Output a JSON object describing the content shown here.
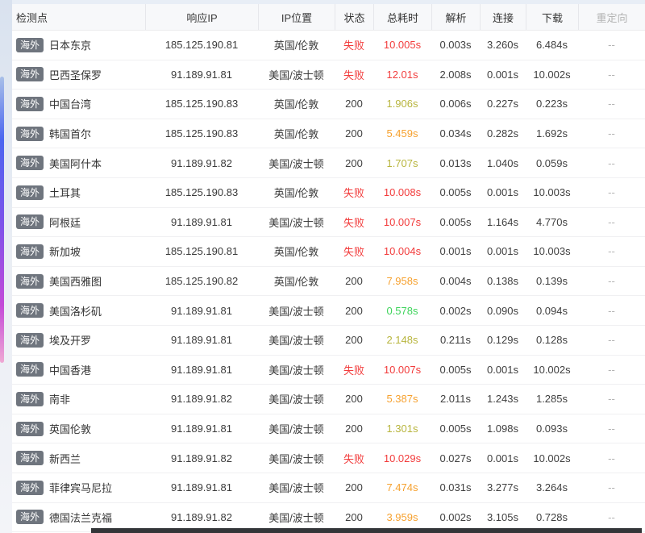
{
  "table": {
    "columns": [
      {
        "key": "node",
        "label": "检测点"
      },
      {
        "key": "ip",
        "label": "响应IP"
      },
      {
        "key": "location",
        "label": "IP位置"
      },
      {
        "key": "status",
        "label": "状态"
      },
      {
        "key": "total",
        "label": "总耗时"
      },
      {
        "key": "dns",
        "label": "解析"
      },
      {
        "key": "connect",
        "label": "连接"
      },
      {
        "key": "download",
        "label": "下载"
      },
      {
        "key": "redirect",
        "label": "重定向"
      }
    ],
    "rows": [
      {
        "tag": "海外",
        "node": "日本东京",
        "ip": "185.125.190.81",
        "location": "英国/伦敦",
        "status": "失败",
        "status_type": "fail",
        "total": "10.005s",
        "total_color": "red",
        "dns": "0.003s",
        "connect": "3.260s",
        "download": "6.484s",
        "redirect": "--"
      },
      {
        "tag": "海外",
        "node": "巴西圣保罗",
        "ip": "91.189.91.81",
        "location": "美国/波士顿",
        "status": "失败",
        "status_type": "fail",
        "total": "12.01s",
        "total_color": "red",
        "dns": "2.008s",
        "connect": "0.001s",
        "download": "10.002s",
        "redirect": "--"
      },
      {
        "tag": "海外",
        "node": "中国台湾",
        "ip": "185.125.190.83",
        "location": "英国/伦敦",
        "status": "200",
        "status_type": "ok",
        "total": "1.906s",
        "total_color": "olive",
        "dns": "0.006s",
        "connect": "0.227s",
        "download": "0.223s",
        "redirect": "--"
      },
      {
        "tag": "海外",
        "node": "韩国首尔",
        "ip": "185.125.190.83",
        "location": "英国/伦敦",
        "status": "200",
        "status_type": "ok",
        "total": "5.459s",
        "total_color": "orange",
        "dns": "0.034s",
        "connect": "0.282s",
        "download": "1.692s",
        "redirect": "--"
      },
      {
        "tag": "海外",
        "node": "美国阿什本",
        "ip": "91.189.91.82",
        "location": "美国/波士顿",
        "status": "200",
        "status_type": "ok",
        "total": "1.707s",
        "total_color": "olive",
        "dns": "0.013s",
        "connect": "1.040s",
        "download": "0.059s",
        "redirect": "--"
      },
      {
        "tag": "海外",
        "node": "土耳其",
        "ip": "185.125.190.83",
        "location": "英国/伦敦",
        "status": "失败",
        "status_type": "fail",
        "total": "10.008s",
        "total_color": "red",
        "dns": "0.005s",
        "connect": "0.001s",
        "download": "10.003s",
        "redirect": "--"
      },
      {
        "tag": "海外",
        "node": "阿根廷",
        "ip": "91.189.91.81",
        "location": "美国/波士顿",
        "status": "失败",
        "status_type": "fail",
        "total": "10.007s",
        "total_color": "red",
        "dns": "0.005s",
        "connect": "1.164s",
        "download": "4.770s",
        "redirect": "--"
      },
      {
        "tag": "海外",
        "node": "新加坡",
        "ip": "185.125.190.81",
        "location": "英国/伦敦",
        "status": "失败",
        "status_type": "fail",
        "total": "10.004s",
        "total_color": "red",
        "dns": "0.001s",
        "connect": "0.001s",
        "download": "10.003s",
        "redirect": "--"
      },
      {
        "tag": "海外",
        "node": "美国西雅图",
        "ip": "185.125.190.82",
        "location": "英国/伦敦",
        "status": "200",
        "status_type": "ok",
        "total": "7.958s",
        "total_color": "orange",
        "dns": "0.004s",
        "connect": "0.138s",
        "download": "0.139s",
        "redirect": "--"
      },
      {
        "tag": "海外",
        "node": "美国洛杉矶",
        "ip": "91.189.91.81",
        "location": "美国/波士顿",
        "status": "200",
        "status_type": "ok",
        "total": "0.578s",
        "total_color": "green",
        "dns": "0.002s",
        "connect": "0.090s",
        "download": "0.094s",
        "redirect": "--"
      },
      {
        "tag": "海外",
        "node": "埃及开罗",
        "ip": "91.189.91.81",
        "location": "美国/波士顿",
        "status": "200",
        "status_type": "ok",
        "total": "2.148s",
        "total_color": "olive",
        "dns": "0.211s",
        "connect": "0.129s",
        "download": "0.128s",
        "redirect": "--"
      },
      {
        "tag": "海外",
        "node": "中国香港",
        "ip": "91.189.91.81",
        "location": "美国/波士顿",
        "status": "失败",
        "status_type": "fail",
        "total": "10.007s",
        "total_color": "red",
        "dns": "0.005s",
        "connect": "0.001s",
        "download": "10.002s",
        "redirect": "--"
      },
      {
        "tag": "海外",
        "node": "南非",
        "ip": "91.189.91.82",
        "location": "美国/波士顿",
        "status": "200",
        "status_type": "ok",
        "total": "5.387s",
        "total_color": "orange",
        "dns": "2.011s",
        "connect": "1.243s",
        "download": "1.285s",
        "redirect": "--"
      },
      {
        "tag": "海外",
        "node": "英国伦敦",
        "ip": "91.189.91.81",
        "location": "美国/波士顿",
        "status": "200",
        "status_type": "ok",
        "total": "1.301s",
        "total_color": "olive",
        "dns": "0.005s",
        "connect": "1.098s",
        "download": "0.093s",
        "redirect": "--"
      },
      {
        "tag": "海外",
        "node": "新西兰",
        "ip": "91.189.91.82",
        "location": "美国/波士顿",
        "status": "失败",
        "status_type": "fail",
        "total": "10.029s",
        "total_color": "red",
        "dns": "0.027s",
        "connect": "0.001s",
        "download": "10.002s",
        "redirect": "--"
      },
      {
        "tag": "海外",
        "node": "菲律宾马尼拉",
        "ip": "91.189.91.81",
        "location": "美国/波士顿",
        "status": "200",
        "status_type": "ok",
        "total": "7.474s",
        "total_color": "orange",
        "dns": "0.031s",
        "connect": "3.277s",
        "download": "3.264s",
        "redirect": "--"
      },
      {
        "tag": "海外",
        "node": "德国法兰克福",
        "ip": "91.189.91.82",
        "location": "美国/波士顿",
        "status": "200",
        "status_type": "ok",
        "total": "3.959s",
        "total_color": "orange",
        "dns": "0.002s",
        "connect": "3.105s",
        "download": "0.728s",
        "redirect": "--"
      }
    ]
  },
  "colors": {
    "fail_red": "#f23c3c",
    "time_red": "#f23c3c",
    "time_orange": "#f6a12f",
    "time_olive": "#b8b53e",
    "time_green": "#3ed45b",
    "status_ok": "#3f3f3f",
    "badge_bg": "#6f757e"
  }
}
